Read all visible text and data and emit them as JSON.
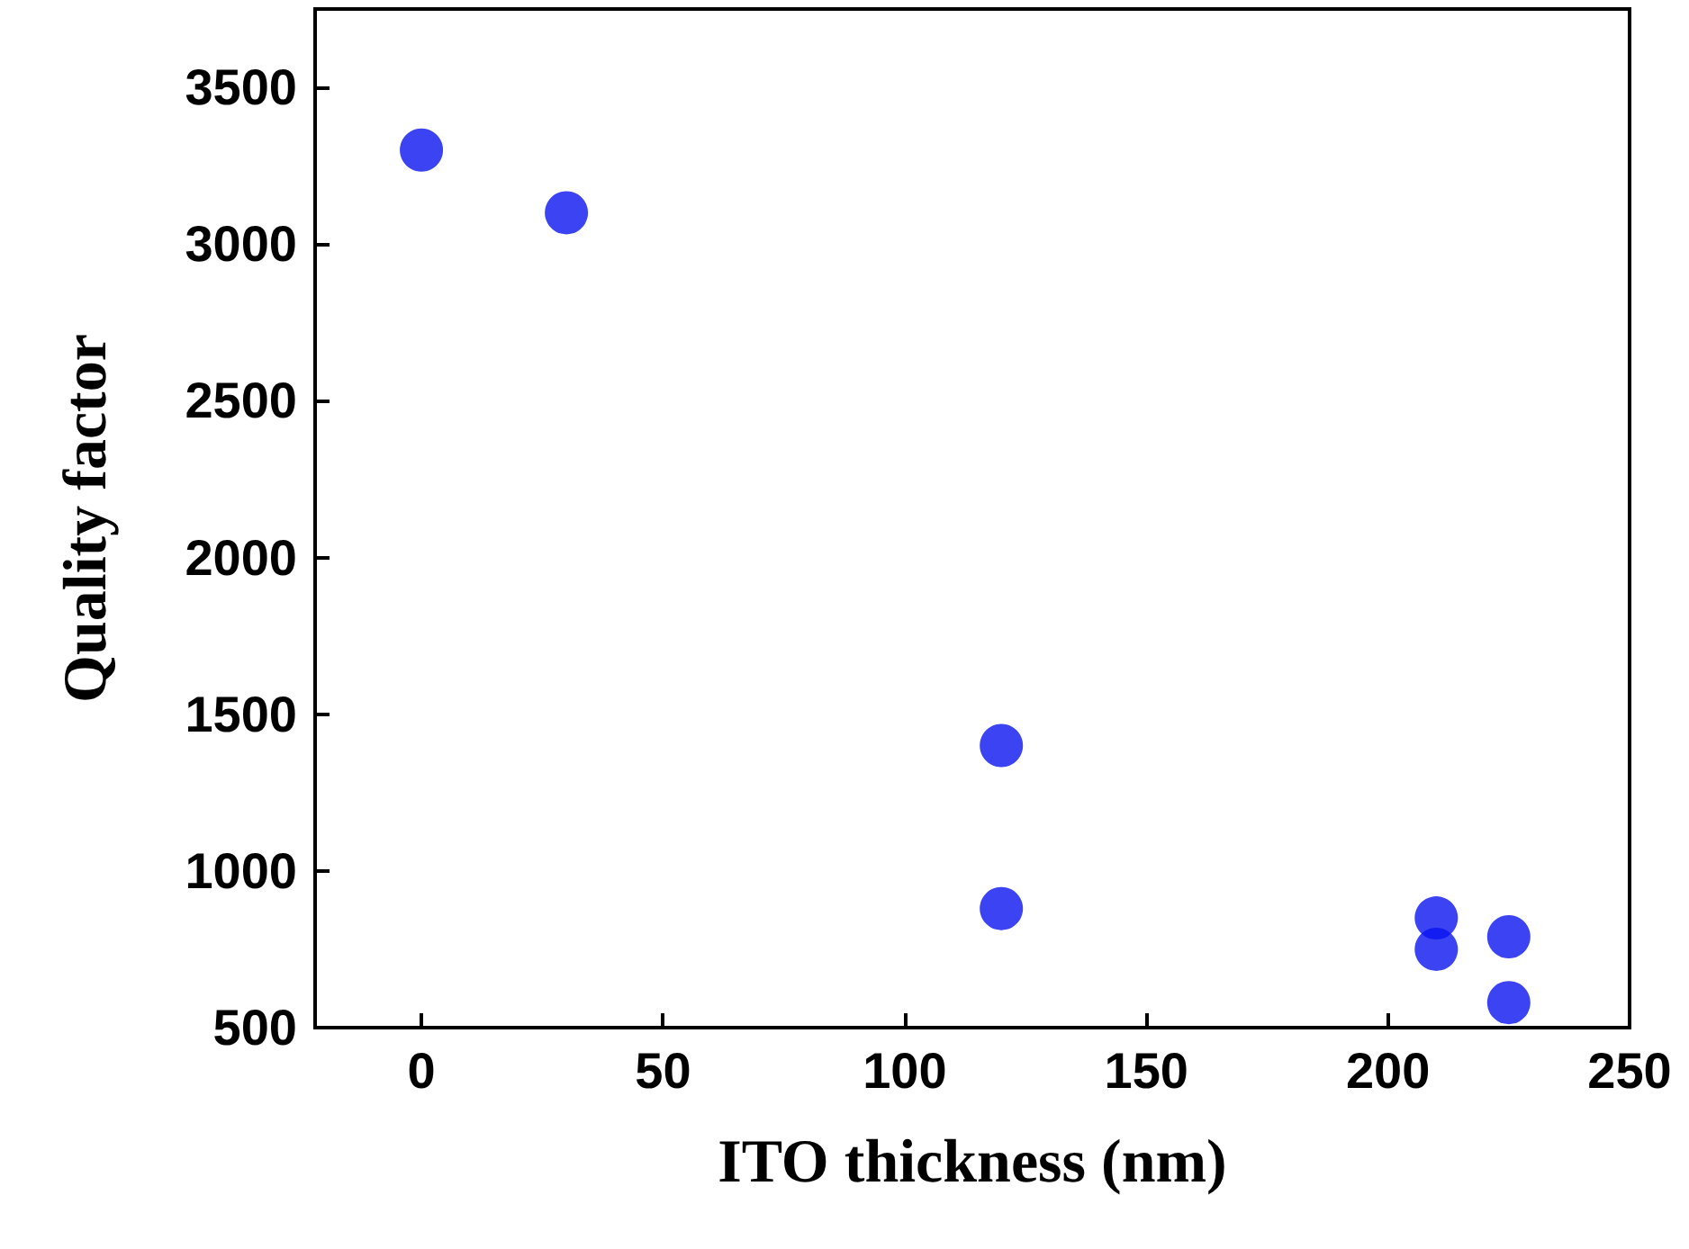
{
  "chart_data": {
    "type": "scatter",
    "xlabel": "ITO thickness (nm)",
    "ylabel": "Quality factor",
    "x": [
      0,
      30,
      120,
      120,
      210,
      210,
      225,
      225
    ],
    "values": [
      3300,
      3100,
      1400,
      880,
      850,
      750,
      790,
      580
    ],
    "color": "#0a14f0",
    "marker": "circle",
    "xlim": [
      -22,
      250
    ],
    "xticks": [
      0,
      50,
      100,
      150,
      200,
      250
    ],
    "ylim": [
      500,
      3750
    ],
    "yticks": [
      500,
      1000,
      1500,
      2000,
      2500,
      3000,
      3500
    ],
    "grid": false
  }
}
